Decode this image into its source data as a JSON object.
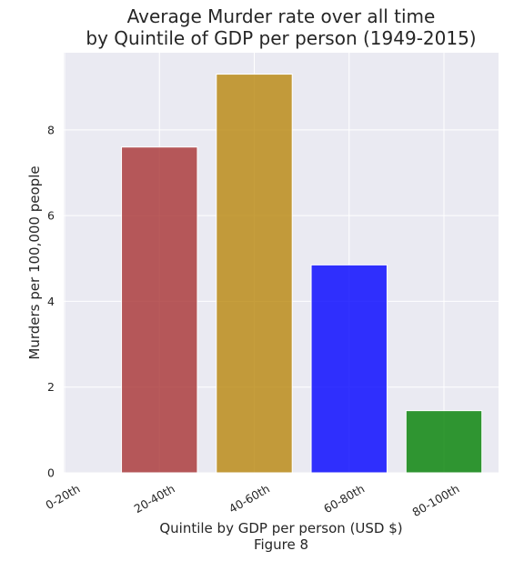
{
  "chart_data": {
    "type": "bar",
    "title": "Average Murder rate over all time\nby Quintile of GDP per person (1949-2015)",
    "xlabel": "Quintile by GDP per person (USD $)",
    "ylabel": "Murders per 100,000 people",
    "caption": "Figure 8",
    "categories": [
      "0-20th",
      "20-40th",
      "40-60th",
      "60-80th",
      "80-100th"
    ],
    "values": [
      0,
      7.6,
      9.3,
      4.85,
      1.45
    ],
    "colors": [
      "#000000",
      "#a83232",
      "#b8860b",
      "#0000ff",
      "#008000"
    ],
    "ylim": [
      0,
      9.8
    ],
    "yticks": [
      0,
      2,
      4,
      6,
      8
    ],
    "grid": true,
    "background": "#eaeaf2"
  }
}
